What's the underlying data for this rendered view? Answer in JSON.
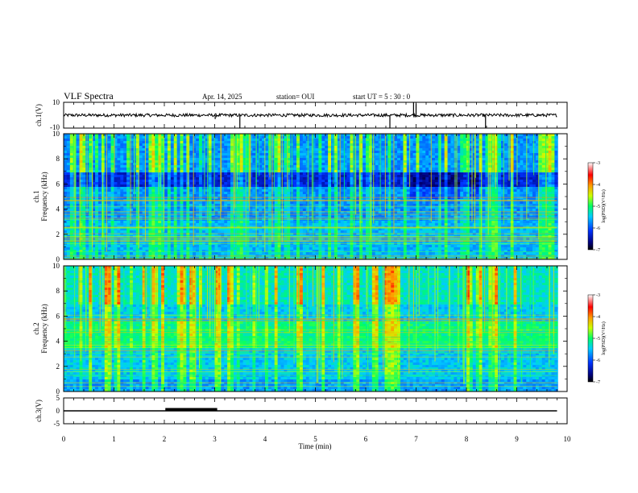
{
  "header": {
    "title": "VLF Spectra",
    "date": "Apr. 14, 2025",
    "station": "station= OUI",
    "start": "start  UT  =   5  : 30 : 0"
  },
  "colors": {
    "spectrogram_scale": [
      "#000000",
      "#000033",
      "#00007a",
      "#0000cc",
      "#0033ff",
      "#0099ff",
      "#00ffff",
      "#00ff66",
      "#66ff00",
      "#ffff00",
      "#ff9900",
      "#ff0000",
      "#ffffff"
    ]
  },
  "chart_data": [
    {
      "id": "ch1-waveform",
      "type": "line",
      "ylabel": "ch.1(V)",
      "ylim": [
        -10,
        10
      ],
      "yticks": [
        "10",
        "-10"
      ],
      "xlim": [
        0,
        10
      ],
      "baseline": 0,
      "data_end_x": 9.8,
      "spikes": [
        {
          "x": 3.01,
          "y": -3
        },
        {
          "x": 3.5,
          "y": -10
        },
        {
          "x": 6.48,
          "y": -10
        },
        {
          "x": 6.95,
          "y": 10
        },
        {
          "x": 7.0,
          "y": 9
        },
        {
          "x": 8.38,
          "y": -10
        }
      ]
    },
    {
      "id": "ch1-spectrogram",
      "type": "heatmap",
      "ylabel_line1": "ch.1",
      "ylabel_line2": "Frequency (kHz)",
      "ylim": [
        0,
        10
      ],
      "xlim": [
        0,
        10
      ],
      "yticks": [
        "0",
        "2",
        "4",
        "6",
        "8",
        "10"
      ],
      "colorbar": {
        "label": "log(PSD)(V²/Hz)",
        "range": [
          -7,
          -3
        ],
        "ticks": [
          "-3",
          "-4",
          "-5",
          "-6",
          "-7"
        ]
      },
      "dark_band_khz": [
        5.8,
        7.0
      ],
      "dark_regions": [
        {
          "x": [
            6.9,
            8.3
          ],
          "y_khz": [
            4.9,
            7.0
          ]
        }
      ]
    },
    {
      "id": "ch2-spectrogram",
      "type": "heatmap",
      "ylabel_line1": "ch.2",
      "ylabel_line2": "Frequency (kHz)",
      "ylim": [
        0,
        10
      ],
      "xlim": [
        0,
        10
      ],
      "yticks": [
        "0",
        "2",
        "4",
        "6",
        "8",
        "10"
      ],
      "colorbar": {
        "label": "log(PSD)(V²/Hz)",
        "range": [
          -7,
          -3
        ],
        "ticks": [
          "-3",
          "-4",
          "-5",
          "-6",
          "-7"
        ]
      },
      "bright_band_khz": [
        3.5,
        5.5
      ]
    },
    {
      "id": "ch3-trace",
      "type": "line",
      "ylabel": "ch.3(V)",
      "ylim": [
        -5,
        5
      ],
      "yticks": [
        "5",
        "0",
        "-5"
      ],
      "xlim": [
        0,
        10
      ],
      "baseline": 0,
      "data_end_x": 9.8,
      "thick_segment_x": [
        2.02,
        3.05
      ],
      "xlabel": "Time (min)",
      "xticks": [
        "0",
        "1",
        "2",
        "3",
        "4",
        "5",
        "6",
        "7",
        "8",
        "9",
        "10"
      ]
    }
  ]
}
